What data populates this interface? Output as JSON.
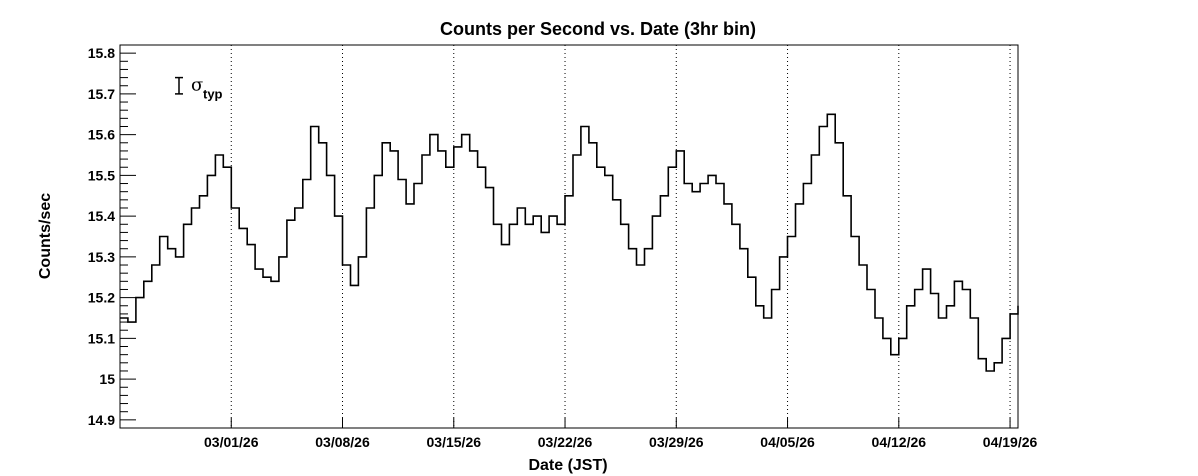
{
  "chart_data": {
    "type": "line",
    "title": "Counts per Second vs. Date (3hr bin)",
    "xlabel": "Date (JST)",
    "ylabel": "Counts/sec",
    "x_axis_type": "date",
    "xlim": [
      "2026-02-22",
      "2026-04-19"
    ],
    "ylim": [
      14.88,
      15.82
    ],
    "y_major_ticks": [
      14.9,
      15,
      15.1,
      15.2,
      15.3,
      15.4,
      15.5,
      15.6,
      15.7,
      15.8
    ],
    "y_tick_labels": [
      "14.9",
      "15",
      "15.1",
      "15.2",
      "15.3",
      "15.4",
      "15.5",
      "15.6",
      "15.7",
      "15.8"
    ],
    "x_ticks": [
      "2026-03-01",
      "2026-03-08",
      "2026-03-15",
      "2026-03-22",
      "2026-03-29",
      "2026-04-05",
      "2026-04-12",
      "2026-04-19"
    ],
    "x_tick_labels": [
      "03/01/26",
      "03/08/26",
      "03/15/26",
      "03/22/26",
      "03/29/26",
      "04/05/26",
      "04/12/26",
      "04/19/26"
    ],
    "vertical_gridlines": "dotted, at x ticks",
    "line_style": "step",
    "line_color": "#000000",
    "error_bar": {
      "label": "σ",
      "label_subscript": "typ",
      "position": "top-left",
      "half_width": 0.02,
      "center_y": 15.72
    },
    "series": [
      {
        "points": [
          [
            "2026-02-22",
            15.15
          ],
          [
            "2026-02-22T12:00",
            15.14
          ],
          [
            "2026-02-23",
            15.2
          ],
          [
            "2026-02-23T12:00",
            15.24
          ],
          [
            "2026-02-24",
            15.28
          ],
          [
            "2026-02-24T12:00",
            15.35
          ],
          [
            "2026-02-25",
            15.32
          ],
          [
            "2026-02-25T12:00",
            15.3
          ],
          [
            "2026-02-26",
            15.38
          ],
          [
            "2026-02-26T12:00",
            15.42
          ],
          [
            "2026-02-27",
            15.45
          ],
          [
            "2026-02-27T12:00",
            15.5
          ],
          [
            "2026-02-28",
            15.55
          ],
          [
            "2026-02-28T12:00",
            15.52
          ],
          [
            "2026-03-01",
            15.42
          ],
          [
            "2026-03-01T12:00",
            15.37
          ],
          [
            "2026-03-02",
            15.33
          ],
          [
            "2026-03-02T12:00",
            15.27
          ],
          [
            "2026-03-03",
            15.25
          ],
          [
            "2026-03-03T12:00",
            15.24
          ],
          [
            "2026-03-04",
            15.3
          ],
          [
            "2026-03-04T12:00",
            15.39
          ],
          [
            "2026-03-05",
            15.42
          ],
          [
            "2026-03-05T12:00",
            15.49
          ],
          [
            "2026-03-06",
            15.62
          ],
          [
            "2026-03-06T12:00",
            15.58
          ],
          [
            "2026-03-07",
            15.5
          ],
          [
            "2026-03-07T12:00",
            15.4
          ],
          [
            "2026-03-08",
            15.28
          ],
          [
            "2026-03-08T12:00",
            15.23
          ],
          [
            "2026-03-09",
            15.3
          ],
          [
            "2026-03-09T12:00",
            15.42
          ],
          [
            "2026-03-10",
            15.5
          ],
          [
            "2026-03-10T12:00",
            15.58
          ],
          [
            "2026-03-11",
            15.56
          ],
          [
            "2026-03-11T12:00",
            15.49
          ],
          [
            "2026-03-12",
            15.43
          ],
          [
            "2026-03-12T12:00",
            15.48
          ],
          [
            "2026-03-13",
            15.55
          ],
          [
            "2026-03-13T12:00",
            15.6
          ],
          [
            "2026-03-14",
            15.56
          ],
          [
            "2026-03-14T12:00",
            15.52
          ],
          [
            "2026-03-15",
            15.57
          ],
          [
            "2026-03-15T12:00",
            15.6
          ],
          [
            "2026-03-16",
            15.56
          ],
          [
            "2026-03-16T12:00",
            15.52
          ],
          [
            "2026-03-17",
            15.47
          ],
          [
            "2026-03-17T12:00",
            15.38
          ],
          [
            "2026-03-18",
            15.33
          ],
          [
            "2026-03-18T12:00",
            15.38
          ],
          [
            "2026-03-19",
            15.42
          ],
          [
            "2026-03-19T12:00",
            15.38
          ],
          [
            "2026-03-20",
            15.4
          ],
          [
            "2026-03-20T12:00",
            15.36
          ],
          [
            "2026-03-21",
            15.4
          ],
          [
            "2026-03-21T12:00",
            15.38
          ],
          [
            "2026-03-22",
            15.45
          ],
          [
            "2026-03-22T12:00",
            15.55
          ],
          [
            "2026-03-23",
            15.62
          ],
          [
            "2026-03-23T12:00",
            15.58
          ],
          [
            "2026-03-24",
            15.52
          ],
          [
            "2026-03-24T12:00",
            15.5
          ],
          [
            "2026-03-25",
            15.44
          ],
          [
            "2026-03-25T12:00",
            15.38
          ],
          [
            "2026-03-26",
            15.32
          ],
          [
            "2026-03-26T12:00",
            15.28
          ],
          [
            "2026-03-27",
            15.32
          ],
          [
            "2026-03-27T12:00",
            15.4
          ],
          [
            "2026-03-28",
            15.45
          ],
          [
            "2026-03-28T12:00",
            15.52
          ],
          [
            "2026-03-29",
            15.56
          ],
          [
            "2026-03-29T12:00",
            15.48
          ],
          [
            "2026-03-30",
            15.46
          ],
          [
            "2026-03-30T12:00",
            15.48
          ],
          [
            "2026-03-31",
            15.5
          ],
          [
            "2026-03-31T12:00",
            15.48
          ],
          [
            "2026-04-01",
            15.43
          ],
          [
            "2026-04-01T12:00",
            15.38
          ],
          [
            "2026-04-02",
            15.32
          ],
          [
            "2026-04-02T12:00",
            15.25
          ],
          [
            "2026-04-03",
            15.18
          ],
          [
            "2026-04-03T12:00",
            15.15
          ],
          [
            "2026-04-04",
            15.22
          ],
          [
            "2026-04-04T12:00",
            15.3
          ],
          [
            "2026-04-05",
            15.35
          ],
          [
            "2026-04-05T12:00",
            15.43
          ],
          [
            "2026-04-06",
            15.48
          ],
          [
            "2026-04-06T12:00",
            15.55
          ],
          [
            "2026-04-07",
            15.62
          ],
          [
            "2026-04-07T12:00",
            15.65
          ],
          [
            "2026-04-08",
            15.58
          ],
          [
            "2026-04-08T12:00",
            15.45
          ],
          [
            "2026-04-09",
            15.35
          ],
          [
            "2026-04-09T12:00",
            15.28
          ],
          [
            "2026-04-10",
            15.22
          ],
          [
            "2026-04-10T12:00",
            15.15
          ],
          [
            "2026-04-11",
            15.1
          ],
          [
            "2026-04-11T12:00",
            15.06
          ],
          [
            "2026-04-12",
            15.1
          ],
          [
            "2026-04-12T12:00",
            15.18
          ],
          [
            "2026-04-13",
            15.22
          ],
          [
            "2026-04-13T12:00",
            15.27
          ],
          [
            "2026-04-14",
            15.21
          ],
          [
            "2026-04-14T12:00",
            15.15
          ],
          [
            "2026-04-15",
            15.18
          ],
          [
            "2026-04-15T12:00",
            15.24
          ],
          [
            "2026-04-16",
            15.22
          ],
          [
            "2026-04-16T12:00",
            15.15
          ],
          [
            "2026-04-17",
            15.05
          ],
          [
            "2026-04-17T12:00",
            15.02
          ],
          [
            "2026-04-18",
            15.04
          ],
          [
            "2026-04-18T12:00",
            15.1
          ],
          [
            "2026-04-19",
            15.16
          ],
          [
            "2026-04-19T12:00",
            15.18
          ]
        ]
      }
    ]
  }
}
